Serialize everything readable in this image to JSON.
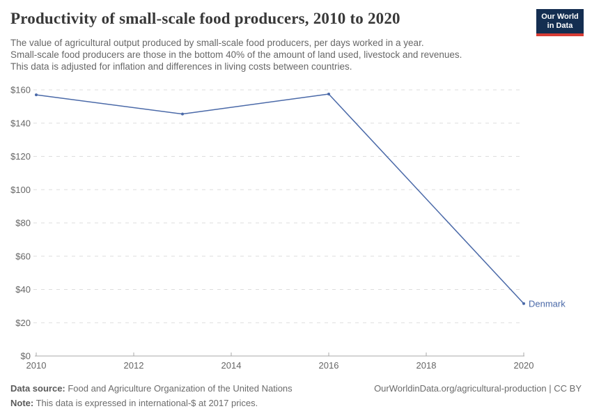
{
  "header": {
    "title": "Productivity of small-scale food producers, 2010 to 2020",
    "logo": {
      "line1": "Our World",
      "line2": "in Data"
    }
  },
  "subtitle": {
    "line1": "The value of agricultural output produced by small-scale food producers, per days worked in a year.",
    "line2": "Small-scale food producers are those in the bottom 40% of the amount of land used, livestock and revenues.",
    "line3": "This data is adjusted for inflation and differences in living costs between countries."
  },
  "chart_data": {
    "type": "line",
    "title": "Productivity of small-scale food producers, 2010 to 2020",
    "series": [
      {
        "name": "Denmark",
        "color": "#4a69a8",
        "x": [
          2010,
          2013,
          2016,
          2020
        ],
        "values": [
          157,
          145.5,
          157.5,
          31.5
        ]
      }
    ],
    "xlabel": "",
    "ylabel": "",
    "xlim": [
      2010,
      2020
    ],
    "ylim": [
      0,
      160
    ],
    "x_ticks": [
      2010,
      2012,
      2014,
      2016,
      2018,
      2020
    ],
    "y_ticks": [
      0,
      20,
      40,
      60,
      80,
      100,
      120,
      140,
      160
    ],
    "y_prefix": "$",
    "grid": "horizontal-dashed",
    "legend": "end-of-line-label"
  },
  "footer": {
    "source_label": "Data source:",
    "source_text": " Food and Agriculture Organization of the United Nations",
    "note_label": "Note:",
    "note_text": " This data is expressed in international-$ at 2017 prices.",
    "link": "OurWorldinData.org/agricultural-production | CC BY"
  },
  "colors": {
    "line": "#4a69a8",
    "grid": "#dddddd",
    "axis": "#a9a9a9",
    "tick_text": "#666666",
    "title_text": "#383838",
    "subtitle_text": "#676767",
    "logo_bg": "#142e51",
    "logo_stripe": "#d73c34"
  }
}
